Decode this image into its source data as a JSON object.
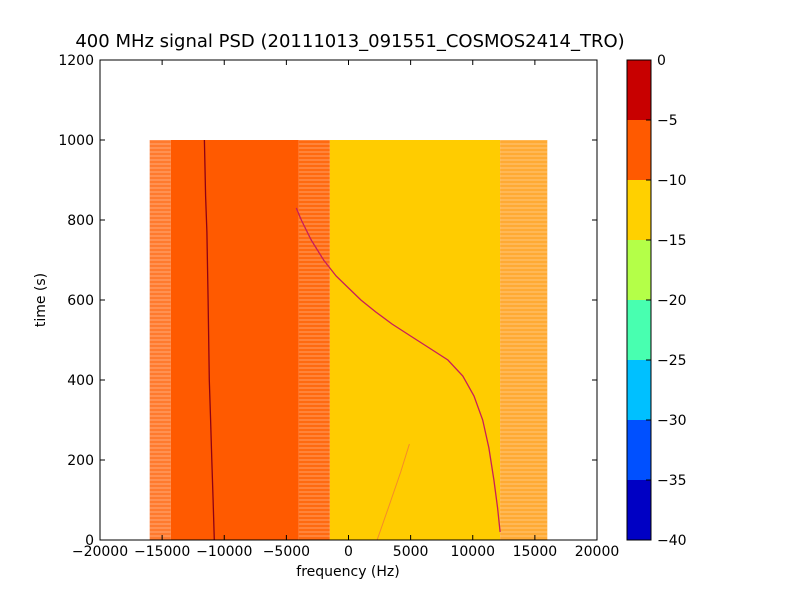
{
  "chart_data": {
    "type": "heatmap",
    "title": "400 MHz signal PSD (20111013_091551_COSMOS2414_TRO)",
    "xlabel": "frequency (Hz)",
    "ylabel": "time (s)",
    "xlim": [
      -20000,
      20000
    ],
    "ylim": [
      0,
      1200
    ],
    "xticks": [
      "−20000",
      "−15000",
      "−10000",
      "−5000",
      "0",
      "5000",
      "10000",
      "15000",
      "20000"
    ],
    "yticks": [
      "0",
      "200",
      "400",
      "600",
      "800",
      "1000",
      "1200"
    ],
    "data_extent": {
      "freq": [
        -16000,
        16000
      ],
      "time": [
        0,
        1000
      ]
    },
    "bands": [
      {
        "freq": [
          -16000,
          -14300
        ],
        "level": -8,
        "color": "#ff7a2e",
        "striped": true
      },
      {
        "freq": [
          -14300,
          -4000
        ],
        "level": -8,
        "color": "#ff5a00",
        "striped": false
      },
      {
        "freq": [
          -4000,
          -1500
        ],
        "level": -8,
        "color": "#ff6a10",
        "striped": true
      },
      {
        "freq": [
          -1500,
          12200
        ],
        "level": -12,
        "color": "#ffcc00",
        "striped": false
      },
      {
        "freq": [
          12200,
          16000
        ],
        "level": -10,
        "color": "#ffaa33",
        "striped": true
      }
    ],
    "traces": [
      {
        "points": [
          [
            -10800,
            0
          ],
          [
            -10900,
            100
          ],
          [
            -11000,
            200
          ],
          [
            -11100,
            300
          ],
          [
            -11200,
            400
          ],
          [
            -11300,
            600
          ],
          [
            -11400,
            770
          ],
          [
            -11500,
            860
          ],
          [
            -11600,
            1000
          ]
        ],
        "color": "#8b0016",
        "width": 1.3
      },
      {
        "points": [
          [
            12200,
            20
          ],
          [
            12000,
            80
          ],
          [
            11700,
            150
          ],
          [
            11300,
            230
          ],
          [
            10800,
            300
          ],
          [
            10100,
            360
          ],
          [
            9200,
            410
          ],
          [
            8000,
            450
          ],
          [
            6500,
            480
          ],
          [
            5000,
            510
          ],
          [
            3500,
            540
          ],
          [
            2200,
            570
          ],
          [
            1000,
            600
          ],
          [
            0,
            630
          ],
          [
            -1000,
            660
          ],
          [
            -2000,
            700
          ],
          [
            -3000,
            750
          ],
          [
            -3800,
            800
          ],
          [
            -4200,
            830
          ]
        ],
        "color": "#c81e5a",
        "width": 1.3
      },
      {
        "points": [
          [
            2300,
            0
          ],
          [
            3200,
            80
          ],
          [
            4200,
            170
          ],
          [
            4900,
            240
          ]
        ],
        "color": "#f58a2a",
        "width": 1
      }
    ],
    "colorbar": {
      "range": [
        -40,
        0
      ],
      "ticks": [
        "0",
        "−5",
        "−10",
        "−15",
        "−20",
        "−25",
        "−30",
        "−35",
        "−40"
      ],
      "levels": [
        {
          "from": -40,
          "to": -35,
          "color": "#0000c4"
        },
        {
          "from": -35,
          "to": -30,
          "color": "#0050ff"
        },
        {
          "from": -30,
          "to": -25,
          "color": "#00c0ff"
        },
        {
          "from": -25,
          "to": -20,
          "color": "#48ffb0"
        },
        {
          "from": -20,
          "to": -15,
          "color": "#b4ff48"
        },
        {
          "from": -15,
          "to": -10,
          "color": "#ffd000"
        },
        {
          "from": -10,
          "to": -5,
          "color": "#ff5a00"
        },
        {
          "from": -5,
          "to": 0,
          "color": "#c80000"
        }
      ]
    }
  }
}
